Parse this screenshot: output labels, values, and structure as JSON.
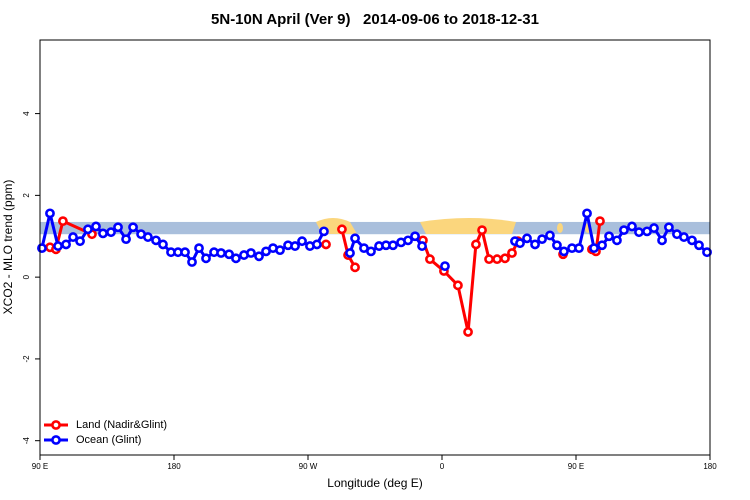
{
  "chart_data": {
    "type": "line",
    "title": "5N-10N April (Ver 9)   2014-09-06 to 2018-12-31",
    "xlabel": "Longitude (deg E)",
    "ylabel": "XCO2 - MLO trend (ppm)",
    "xlim": [
      90,
      540
    ],
    "ylim": [
      -4.35,
      5.8
    ],
    "xticks": [
      {
        "value": 90,
        "label": "90 E"
      },
      180,
      {
        "value": 270,
        "label": "90 W"
      },
      {
        "value": 360,
        "label": "0"
      },
      {
        "value": 450,
        "label": "90 E"
      },
      {
        "value": 540,
        "label": "180"
      }
    ],
    "yticks": [
      -4,
      -2,
      0,
      2,
      4
    ],
    "band": [
      1.05,
      1.35
    ],
    "band_color": "#a9bfdc",
    "legend": "bottom-left",
    "series": [
      {
        "name": "Land (Nadir&Glint)",
        "color": "#ff0000",
        "x": [
          96.7,
          100.7,
          105.4,
          124.9,
          null,
          282.1,
          null,
          292.8,
          296.9,
          301.6,
          null,
          347.2,
          351.9,
          361.3,
          370.7,
          377.5,
          382.8,
          386.9,
          391.6,
          397.0,
          402.3,
          407.0,
          411.0,
          null,
          441.3,
          null,
          460.7,
          463.4,
          466.1
        ],
        "values": [
          0.73,
          0.68,
          1.37,
          1.05,
          null,
          0.8,
          null,
          1.17,
          0.54,
          0.24,
          null,
          0.9,
          0.44,
          0.15,
          -0.2,
          -1.34,
          0.8,
          1.15,
          0.44,
          0.44,
          0.46,
          0.59,
          0.88,
          null,
          0.56,
          null,
          0.68,
          0.63,
          1.37
        ]
      },
      {
        "name": "Ocean (Glint)",
        "color": "#0000ff",
        "x": [
          91.3,
          96.7,
          102.1,
          107.5,
          112.2,
          116.9,
          122.2,
          127.6,
          132.3,
          137.7,
          142.4,
          147.8,
          152.5,
          157.9,
          162.5,
          167.9,
          172.6,
          178.0,
          182.7,
          187.4,
          192.1,
          196.8,
          201.5,
          206.9,
          211.6,
          217.0,
          221.6,
          227.0,
          231.7,
          237.1,
          241.8,
          246.5,
          251.2,
          256.6,
          261.3,
          266.0,
          271.3,
          276.0,
          280.7,
          null,
          298.2,
          301.6,
          307.6,
          312.3,
          317.7,
          322.4,
          327.1,
          332.5,
          337.2,
          341.9,
          346.6,
          null,
          362.0,
          null,
          409.0,
          412.4,
          417.1,
          422.5,
          427.2,
          432.5,
          437.2,
          441.9,
          447.3,
          452.0,
          457.4,
          462.1,
          467.5,
          472.2,
          477.5,
          482.2,
          487.6,
          492.3,
          497.7,
          502.4,
          507.8,
          512.4,
          517.8,
          522.5,
          527.9,
          532.6,
          538.0
        ],
        "values": [
          0.71,
          1.56,
          0.76,
          0.8,
          0.98,
          0.88,
          1.17,
          1.24,
          1.07,
          1.1,
          1.22,
          0.93,
          1.22,
          1.05,
          0.98,
          0.9,
          0.8,
          0.61,
          0.61,
          0.61,
          0.37,
          0.71,
          0.46,
          0.61,
          0.59,
          0.56,
          0.46,
          0.54,
          0.59,
          0.51,
          0.63,
          0.71,
          0.66,
          0.78,
          0.76,
          0.88,
          0.76,
          0.8,
          1.12,
          null,
          0.59,
          0.95,
          0.71,
          0.63,
          0.76,
          0.78,
          0.78,
          0.85,
          0.9,
          1.0,
          0.76,
          null,
          0.27,
          null,
          0.88,
          0.83,
          0.95,
          0.8,
          0.93,
          1.02,
          0.78,
          0.63,
          0.71,
          0.71,
          1.56,
          0.71,
          0.78,
          1.0,
          0.9,
          1.15,
          1.24,
          1.1,
          1.12,
          1.2,
          0.9,
          1.22,
          1.05,
          0.98,
          0.9,
          0.78,
          0.61
        ]
      }
    ]
  }
}
